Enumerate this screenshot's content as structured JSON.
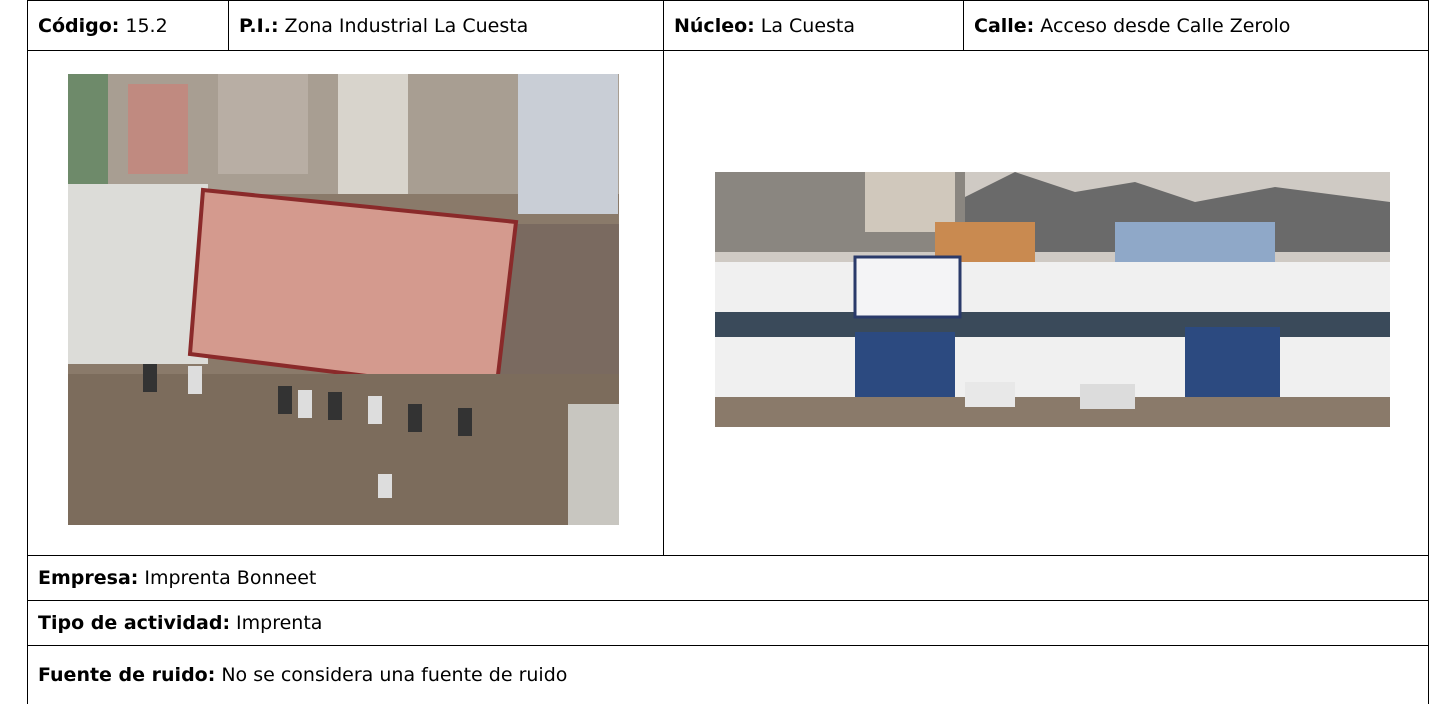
{
  "header": {
    "cells": [
      {
        "label": "Código:",
        "value": "15.2"
      },
      {
        "label": "P.I.:",
        "value": "Zona Industrial La Cuesta"
      },
      {
        "label": "Núcleo:",
        "value": "La Cuesta"
      },
      {
        "label": "Calle:",
        "value": "Acceso desde Calle Zerolo"
      }
    ]
  },
  "details": [
    {
      "label": "Empresa:",
      "value": "Imprenta Bonneet"
    },
    {
      "label": "Tipo de actividad:",
      "value": "Imprenta"
    },
    {
      "label": "Fuente de ruido:",
      "value": "No se considera una fuente de ruido"
    }
  ]
}
